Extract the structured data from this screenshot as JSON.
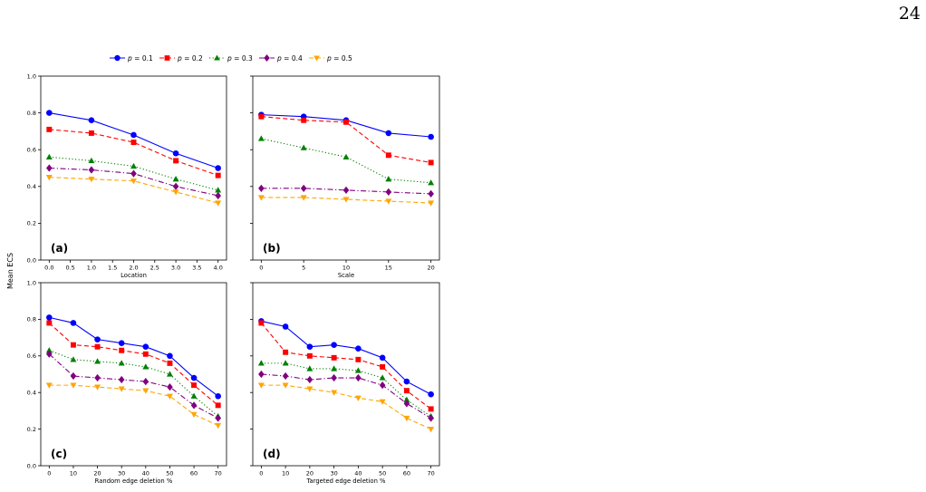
{
  "page": {
    "number": "24"
  },
  "figure": {
    "ylabel": "Mean ECS",
    "legend": {
      "position": "top-center",
      "entries": [
        {
          "p": "p",
          "value": " = 0.1",
          "color": "#0000ff",
          "marker": "circle",
          "dash": "solid"
        },
        {
          "p": "p",
          "value": " = 0.2",
          "color": "#ff0000",
          "marker": "square",
          "dash": "dashed"
        },
        {
          "p": "p",
          "value": " = 0.3",
          "color": "#008000",
          "marker": "triangle-up",
          "dash": "dotted"
        },
        {
          "p": "p",
          "value": " = 0.4",
          "color": "#800080",
          "marker": "diamond",
          "dash": "dashdot"
        },
        {
          "p": "p",
          "value": " = 0.5",
          "color": "#ffa500",
          "marker": "triangle-down",
          "dash": "dashed"
        }
      ]
    }
  },
  "chart_data": [
    {
      "type": "line",
      "panel": "(a)",
      "xlabel": "Location",
      "ylabel": "Mean ECS",
      "xlim": [
        -0.2,
        4.2
      ],
      "ylim": [
        0.0,
        1.0
      ],
      "xticks": [
        "0.0",
        "0.5",
        "1.0",
        "1.5",
        "2.0",
        "2.5",
        "3.0",
        "3.5",
        "4.0"
      ],
      "yticks": [
        "0.0",
        "0.2",
        "0.4",
        "0.6",
        "0.8",
        "1.0"
      ],
      "x": [
        0,
        1,
        2,
        3,
        4
      ],
      "series": [
        {
          "name": "p = 0.1",
          "values": [
            0.8,
            0.76,
            0.68,
            0.58,
            0.5
          ]
        },
        {
          "name": "p = 0.2",
          "values": [
            0.71,
            0.69,
            0.64,
            0.54,
            0.46
          ]
        },
        {
          "name": "p = 0.3",
          "values": [
            0.56,
            0.54,
            0.51,
            0.44,
            0.38
          ]
        },
        {
          "name": "p = 0.4",
          "values": [
            0.5,
            0.49,
            0.47,
            0.4,
            0.35
          ]
        },
        {
          "name": "p = 0.5",
          "values": [
            0.45,
            0.44,
            0.43,
            0.37,
            0.31
          ]
        }
      ]
    },
    {
      "type": "line",
      "panel": "(b)",
      "xlabel": "Scale",
      "ylabel": "",
      "xlim": [
        -1,
        21
      ],
      "ylim": [
        0.0,
        1.0
      ],
      "xticks": [
        "0",
        "5",
        "10",
        "15",
        "20"
      ],
      "yticks": [],
      "x": [
        0,
        5,
        10,
        15,
        20
      ],
      "series": [
        {
          "name": "p = 0.1",
          "values": [
            0.79,
            0.78,
            0.76,
            0.69,
            0.67
          ]
        },
        {
          "name": "p = 0.2",
          "values": [
            0.78,
            0.76,
            0.75,
            0.57,
            0.53
          ]
        },
        {
          "name": "p = 0.3",
          "values": [
            0.66,
            0.61,
            0.56,
            0.44,
            0.42
          ]
        },
        {
          "name": "p = 0.4",
          "values": [
            0.39,
            0.39,
            0.38,
            0.37,
            0.36
          ]
        },
        {
          "name": "p = 0.5",
          "values": [
            0.34,
            0.34,
            0.33,
            0.32,
            0.31
          ]
        }
      ]
    },
    {
      "type": "line",
      "panel": "(c)",
      "xlabel": "Random edge deletion %",
      "ylabel": "Mean ECS",
      "xlim": [
        -3.5,
        73.5
      ],
      "ylim": [
        0.0,
        1.0
      ],
      "xticks": [
        "0",
        "10",
        "20",
        "30",
        "40",
        "50",
        "60",
        "70"
      ],
      "yticks": [
        "0.0",
        "0.2",
        "0.4",
        "0.6",
        "0.8",
        "1.0"
      ],
      "x": [
        0,
        10,
        20,
        30,
        40,
        50,
        60,
        70
      ],
      "series": [
        {
          "name": "p = 0.1",
          "values": [
            0.81,
            0.78,
            0.69,
            0.67,
            0.65,
            0.6,
            0.48,
            0.38
          ]
        },
        {
          "name": "p = 0.2",
          "values": [
            0.78,
            0.66,
            0.65,
            0.63,
            0.61,
            0.56,
            0.44,
            0.33
          ]
        },
        {
          "name": "p = 0.3",
          "values": [
            0.63,
            0.58,
            0.57,
            0.56,
            0.54,
            0.5,
            0.38,
            0.27
          ]
        },
        {
          "name": "p = 0.4",
          "values": [
            0.61,
            0.49,
            0.48,
            0.47,
            0.46,
            0.43,
            0.33,
            0.26
          ]
        },
        {
          "name": "p = 0.5",
          "values": [
            0.44,
            0.44,
            0.43,
            0.42,
            0.41,
            0.38,
            0.28,
            0.22
          ]
        }
      ]
    },
    {
      "type": "line",
      "panel": "(d)",
      "xlabel": "Targeted edge deletion %",
      "ylabel": "",
      "xlim": [
        -3.5,
        73.5
      ],
      "ylim": [
        0.0,
        1.0
      ],
      "xticks": [
        "0",
        "10",
        "20",
        "30",
        "40",
        "50",
        "60",
        "70"
      ],
      "yticks": [],
      "x": [
        0,
        10,
        20,
        30,
        40,
        50,
        60,
        70
      ],
      "series": [
        {
          "name": "p = 0.1",
          "values": [
            0.79,
            0.76,
            0.65,
            0.66,
            0.64,
            0.59,
            0.46,
            0.39
          ]
        },
        {
          "name": "p = 0.2",
          "values": [
            0.78,
            0.62,
            0.6,
            0.59,
            0.58,
            0.54,
            0.41,
            0.31
          ]
        },
        {
          "name": "p = 0.3",
          "values": [
            0.56,
            0.56,
            0.53,
            0.53,
            0.52,
            0.48,
            0.36,
            0.27
          ]
        },
        {
          "name": "p = 0.4",
          "values": [
            0.5,
            0.49,
            0.47,
            0.48,
            0.48,
            0.44,
            0.34,
            0.26
          ]
        },
        {
          "name": "p = 0.5",
          "values": [
            0.44,
            0.44,
            0.42,
            0.4,
            0.37,
            0.35,
            0.26,
            0.2
          ]
        }
      ]
    }
  ]
}
